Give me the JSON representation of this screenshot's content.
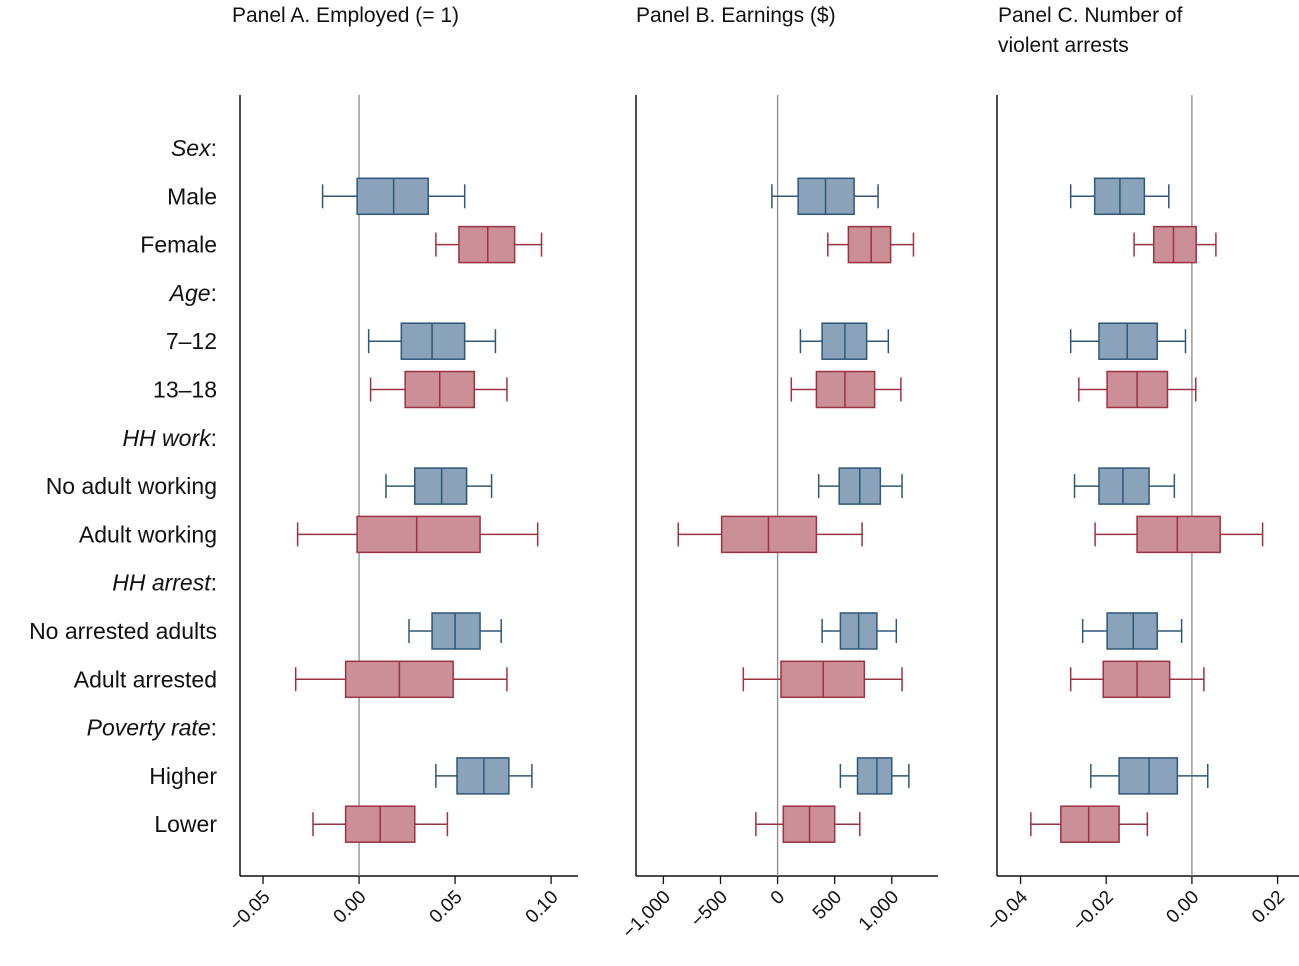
{
  "colors": {
    "blue_fill": "#8aa3bb",
    "blue_stroke": "#2f5778",
    "red_fill": "#cb8f97",
    "red_stroke": "#9b3342",
    "axis": "#111111",
    "zero_line": "#8c8c8c"
  },
  "chart_data": {
    "type": "boxplot",
    "rows": [
      {
        "label": "Sex",
        "heading": true
      },
      {
        "label": "Male",
        "group": "blue"
      },
      {
        "label": "Female",
        "group": "red"
      },
      {
        "label": "Age",
        "heading": true
      },
      {
        "label": "7–12",
        "group": "blue"
      },
      {
        "label": "13–18",
        "group": "red"
      },
      {
        "label": "HH work",
        "heading": true
      },
      {
        "label": "No adult working",
        "group": "blue"
      },
      {
        "label": "Adult working",
        "group": "red"
      },
      {
        "label": "HH arrest",
        "heading": true
      },
      {
        "label": "No arrested adults",
        "group": "blue"
      },
      {
        "label": "Adult arrested",
        "group": "red"
      },
      {
        "label": "Poverty rate",
        "heading": true
      },
      {
        "label": "Higher",
        "group": "blue"
      },
      {
        "label": "Lower",
        "group": "red"
      }
    ],
    "panels": [
      {
        "title_lines": [
          "Panel A. Employed (= 1)"
        ],
        "xlim": [
          -0.062,
          0.114
        ],
        "ticks": [
          -0.05,
          0.0,
          0.05,
          0.1
        ],
        "tick_labels": [
          "−0.05",
          "0.00",
          "0.05",
          "0.10"
        ],
        "boxes": [
          {
            "row": "Male",
            "whisker_low": -0.019,
            "q1": -0.001,
            "median": 0.018,
            "q3": 0.036,
            "whisker_high": 0.055
          },
          {
            "row": "Female",
            "whisker_low": 0.04,
            "q1": 0.052,
            "median": 0.067,
            "q3": 0.081,
            "whisker_high": 0.095
          },
          {
            "row": "7–12",
            "whisker_low": 0.005,
            "q1": 0.022,
            "median": 0.038,
            "q3": 0.055,
            "whisker_high": 0.071
          },
          {
            "row": "13–18",
            "whisker_low": 0.006,
            "q1": 0.024,
            "median": 0.042,
            "q3": 0.06,
            "whisker_high": 0.077
          },
          {
            "row": "No adult working",
            "whisker_low": 0.014,
            "q1": 0.029,
            "median": 0.043,
            "q3": 0.056,
            "whisker_high": 0.069
          },
          {
            "row": "Adult working",
            "whisker_low": -0.032,
            "q1": -0.001,
            "median": 0.03,
            "q3": 0.063,
            "whisker_high": 0.093
          },
          {
            "row": "No arrested adults",
            "whisker_low": 0.026,
            "q1": 0.038,
            "median": 0.05,
            "q3": 0.063,
            "whisker_high": 0.074
          },
          {
            "row": "Adult arrested",
            "whisker_low": -0.033,
            "q1": -0.007,
            "median": 0.021,
            "q3": 0.049,
            "whisker_high": 0.077
          },
          {
            "row": "Higher",
            "whisker_low": 0.04,
            "q1": 0.051,
            "median": 0.065,
            "q3": 0.078,
            "whisker_high": 0.09
          },
          {
            "row": "Lower",
            "whisker_low": -0.024,
            "q1": -0.007,
            "median": 0.011,
            "q3": 0.029,
            "whisker_high": 0.046
          }
        ]
      },
      {
        "title_lines": [
          "Panel B. Earnings ($)"
        ],
        "xlim": [
          -1240,
          1405
        ],
        "ticks": [
          -1000,
          -500,
          0,
          500,
          1000
        ],
        "tick_labels": [
          "−1,000",
          "−500",
          "0",
          "500",
          "1,000"
        ],
        "boxes": [
          {
            "row": "Male",
            "whisker_low": -50,
            "q1": 180,
            "median": 420,
            "q3": 670,
            "whisker_high": 880
          },
          {
            "row": "Female",
            "whisker_low": 440,
            "q1": 620,
            "median": 820,
            "q3": 990,
            "whisker_high": 1190
          },
          {
            "row": "7–12",
            "whisker_low": 200,
            "q1": 390,
            "median": 590,
            "q3": 780,
            "whisker_high": 970
          },
          {
            "row": "13–18",
            "whisker_low": 120,
            "q1": 340,
            "median": 590,
            "q3": 850,
            "whisker_high": 1080
          },
          {
            "row": "No adult working",
            "whisker_low": 360,
            "q1": 540,
            "median": 720,
            "q3": 900,
            "whisker_high": 1090
          },
          {
            "row": "Adult working",
            "whisker_low": -870,
            "q1": -490,
            "median": -80,
            "q3": 340,
            "whisker_high": 740
          },
          {
            "row": "No arrested adults",
            "whisker_low": 390,
            "q1": 550,
            "median": 710,
            "q3": 870,
            "whisker_high": 1040
          },
          {
            "row": "Adult arrested",
            "whisker_low": -300,
            "q1": 30,
            "median": 400,
            "q3": 760,
            "whisker_high": 1090
          },
          {
            "row": "Higher",
            "whisker_low": 550,
            "q1": 700,
            "median": 870,
            "q3": 1000,
            "whisker_high": 1150
          },
          {
            "row": "Lower",
            "whisker_low": -190,
            "q1": 50,
            "median": 280,
            "q3": 500,
            "whisker_high": 720
          }
        ]
      },
      {
        "title_lines": [
          "Panel C. Number of",
          "violent arrests"
        ],
        "xlim": [
          -0.0455,
          0.025
        ],
        "ticks": [
          -0.04,
          -0.02,
          0.0,
          0.02
        ],
        "tick_labels": [
          "−0.04",
          "−0.02",
          "0.00",
          "0.02"
        ],
        "boxes": [
          {
            "row": "Male",
            "whisker_low": -0.0283,
            "q1": -0.0227,
            "median": -0.0168,
            "q3": -0.0111,
            "whisker_high": -0.0054
          },
          {
            "row": "Female",
            "whisker_low": -0.0135,
            "q1": -0.0089,
            "median": -0.0043,
            "q3": 0.001,
            "whisker_high": 0.0056
          },
          {
            "row": "7–12",
            "whisker_low": -0.0283,
            "q1": -0.0217,
            "median": -0.0151,
            "q3": -0.0081,
            "whisker_high": -0.0015
          },
          {
            "row": "13–18",
            "whisker_low": -0.0264,
            "q1": -0.0198,
            "median": -0.0128,
            "q3": -0.0057,
            "whisker_high": 0.0009
          },
          {
            "row": "No adult working",
            "whisker_low": -0.0274,
            "q1": -0.0217,
            "median": -0.0161,
            "q3": -0.01,
            "whisker_high": -0.0041
          },
          {
            "row": "Adult working",
            "whisker_low": -0.0226,
            "q1": -0.0128,
            "median": -0.0034,
            "q3": 0.0066,
            "whisker_high": 0.0165
          },
          {
            "row": "No arrested adults",
            "whisker_low": -0.0255,
            "q1": -0.0198,
            "median": -0.0137,
            "q3": -0.0081,
            "whisker_high": -0.0024
          },
          {
            "row": "Adult arrested",
            "whisker_low": -0.0283,
            "q1": -0.0207,
            "median": -0.0128,
            "q3": -0.0052,
            "whisker_high": 0.0028
          },
          {
            "row": "Higher",
            "whisker_low": -0.0236,
            "q1": -0.017,
            "median": -0.01,
            "q3": -0.0034,
            "whisker_high": 0.0037
          },
          {
            "row": "Lower",
            "whisker_low": -0.0376,
            "q1": -0.0306,
            "median": -0.0241,
            "q3": -0.017,
            "whisker_high": -0.0104
          }
        ]
      }
    ]
  }
}
